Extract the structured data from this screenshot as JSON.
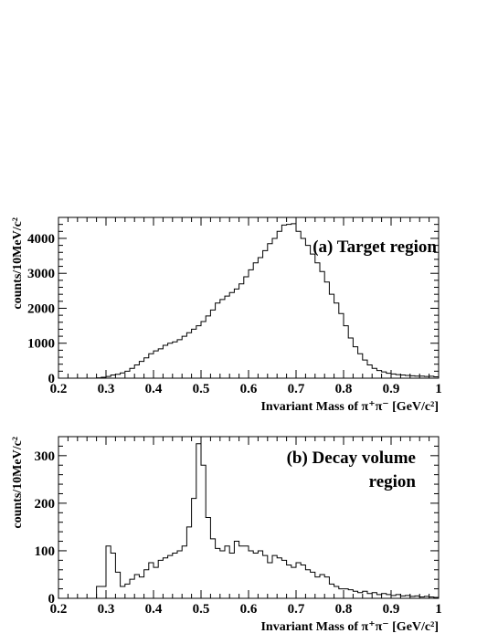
{
  "chart_data": [
    {
      "type": "histogram",
      "annotation_lines": [
        "(a) Target region"
      ],
      "xlabel": "Invariant Mass of π⁺π⁻ [GeV/c²]",
      "ylabel": "counts/10MeV/c²",
      "xlim": [
        0.2,
        1.0
      ],
      "ylim": [
        0,
        4600
      ],
      "x_ticks": [
        "0.2",
        "0.3",
        "0.4",
        "0.5",
        "0.6",
        "0.7",
        "0.8",
        "0.9",
        "1"
      ],
      "y_ticks": [
        "0",
        "1000",
        "2000",
        "3000",
        "4000"
      ],
      "bin_width": 0.01,
      "bin_start": 0.2,
      "values": [
        0,
        0,
        0,
        0,
        0,
        0,
        0,
        0,
        10,
        25,
        50,
        90,
        110,
        150,
        200,
        280,
        380,
        480,
        580,
        700,
        780,
        840,
        940,
        1000,
        1040,
        1100,
        1200,
        1300,
        1400,
        1500,
        1620,
        1780,
        1950,
        2150,
        2250,
        2350,
        2450,
        2550,
        2700,
        2900,
        3100,
        3300,
        3450,
        3650,
        3850,
        4000,
        4200,
        4380,
        4400,
        4420,
        4200,
        4000,
        3800,
        3550,
        3300,
        3050,
        2750,
        2400,
        2150,
        1850,
        1500,
        1150,
        900,
        700,
        520,
        380,
        280,
        220,
        180,
        140,
        120,
        100,
        90,
        80,
        70,
        60,
        60,
        50,
        55,
        40
      ]
    },
    {
      "type": "histogram",
      "annotation_lines": [
        "(b) Decay volume",
        "region"
      ],
      "xlabel": "Invariant Mass of π⁺π⁻ [GeV/c²]",
      "ylabel": "counts/10MeV/c²",
      "xlim": [
        0.2,
        1.0
      ],
      "ylim": [
        0,
        340
      ],
      "x_ticks": [
        "0.2",
        "0.3",
        "0.4",
        "0.5",
        "0.6",
        "0.7",
        "0.8",
        "0.9",
        "1"
      ],
      "y_ticks": [
        "0",
        "100",
        "200",
        "300"
      ],
      "bin_width": 0.01,
      "bin_start": 0.2,
      "values": [
        0,
        0,
        0,
        0,
        0,
        0,
        0,
        0,
        25,
        25,
        110,
        95,
        55,
        25,
        30,
        40,
        50,
        45,
        60,
        75,
        65,
        80,
        85,
        90,
        95,
        100,
        110,
        150,
        210,
        325,
        280,
        170,
        125,
        105,
        100,
        110,
        95,
        120,
        110,
        110,
        100,
        95,
        100,
        90,
        75,
        90,
        85,
        80,
        70,
        65,
        75,
        70,
        60,
        55,
        45,
        50,
        45,
        30,
        25,
        20,
        20,
        18,
        15,
        12,
        15,
        10,
        12,
        8,
        10,
        8,
        6,
        8,
        5,
        6,
        4,
        5,
        3,
        4,
        3,
        2
      ]
    }
  ]
}
